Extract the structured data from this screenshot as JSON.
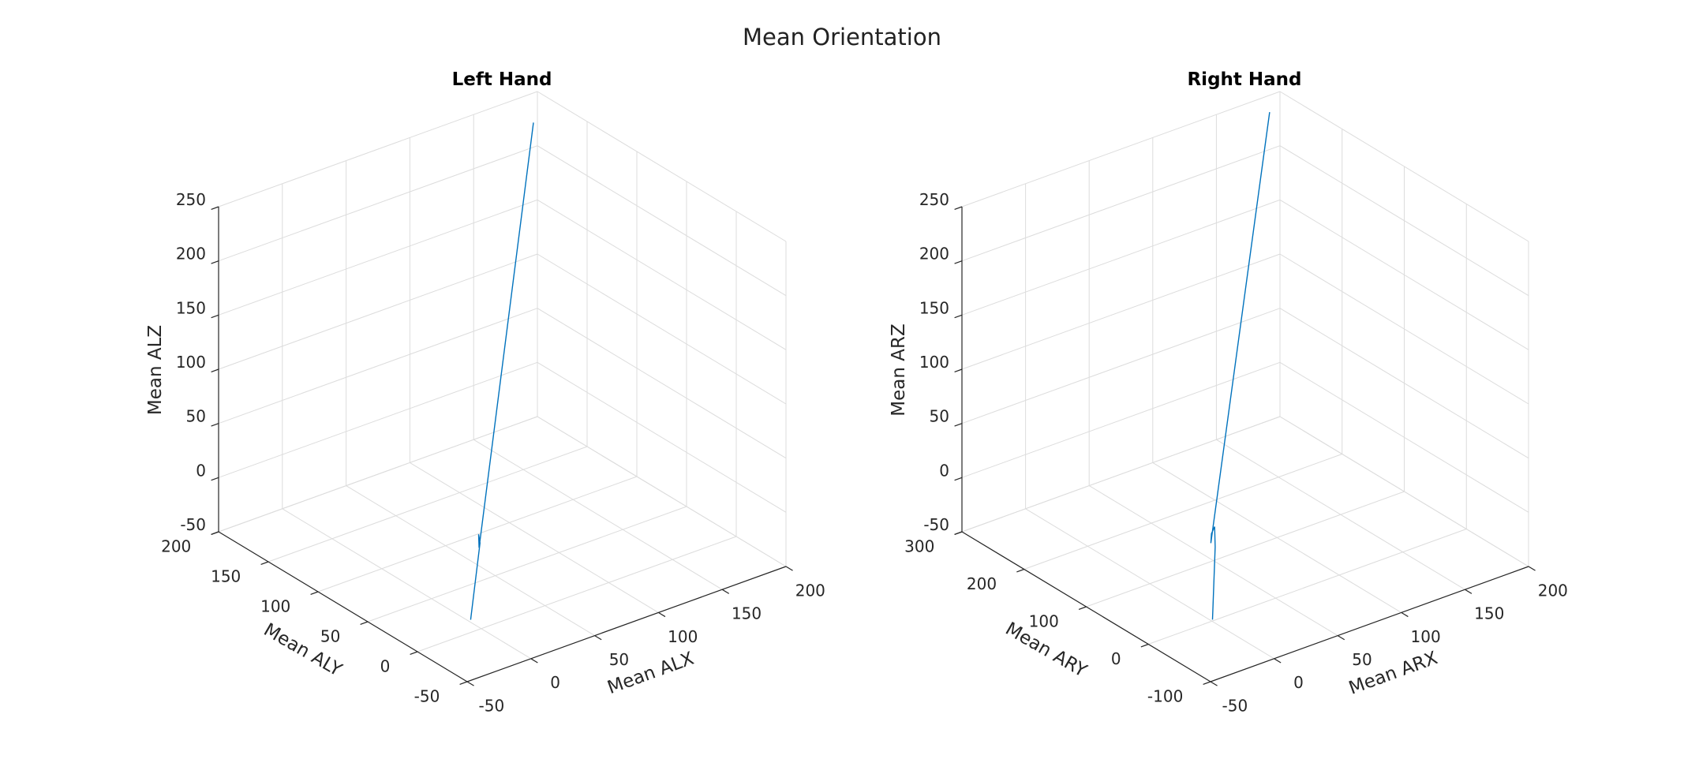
{
  "figure_title": "Mean Orientation",
  "chart_data": [
    {
      "type": "line",
      "title": "Left Hand",
      "xlabel": "Mean ALX",
      "ylabel": "Mean ALY",
      "zlabel": "Mean ALZ",
      "xlim": [
        -50,
        200
      ],
      "ylim": [
        -50,
        200
      ],
      "zlim": [
        -50,
        250
      ],
      "xticks": [
        "-50",
        "0",
        "50",
        "100",
        "150",
        "200"
      ],
      "yticks": [
        "-50",
        "0",
        "50",
        "100",
        "150",
        "200"
      ],
      "zticks": [
        "-50",
        "0",
        "50",
        "100",
        "150",
        "200",
        "250"
      ],
      "grid": true,
      "color": "#0072BD",
      "series": [
        {
          "x": [
            -20,
            3,
            5,
            3,
            186
          ],
          "y": [
            -15,
            5,
            9,
            6,
            186
          ],
          "z": [
            -25,
            25,
            30,
            20,
            235
          ]
        }
      ]
    },
    {
      "type": "line",
      "title": "Right Hand",
      "xlabel": "Mean ARX",
      "ylabel": "Mean ARY",
      "zlabel": "Mean ARZ",
      "xlim": [
        -50,
        200
      ],
      "ylim": [
        -100,
        300
      ],
      "zlim": [
        -50,
        250
      ],
      "xticks": [
        "-50",
        "0",
        "50",
        "100",
        "150",
        "200"
      ],
      "yticks": [
        "-100",
        "0",
        "100",
        "200",
        "300"
      ],
      "zticks": [
        "-50",
        "0",
        "50",
        "100",
        "150",
        "200",
        "250"
      ],
      "grid": true,
      "color": "#0072BD",
      "series": [
        {
          "x": [
            -25,
            2,
            5,
            4,
            3,
            187
          ],
          "y": [
            -52,
            -1,
            6,
            9,
            8,
            290
          ],
          "z": [
            -20,
            18,
            33,
            26,
            18,
            240
          ]
        }
      ]
    }
  ]
}
